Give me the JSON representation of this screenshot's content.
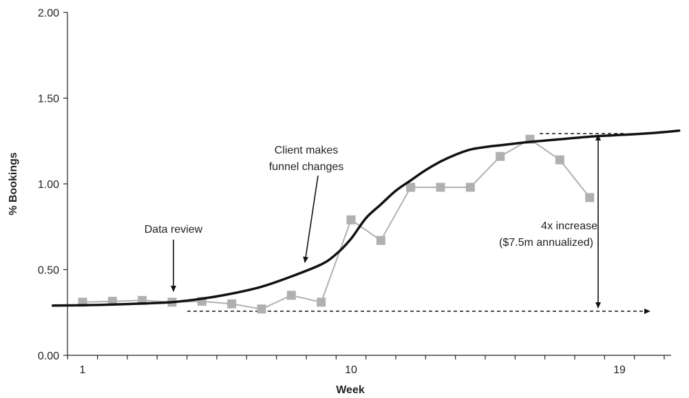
{
  "chart_data": {
    "type": "line",
    "title": "",
    "xlabel": "Week",
    "ylabel": "% Bookings",
    "xlim": [
      0,
      21
    ],
    "ylim": [
      0,
      2.0
    ],
    "x_tick_labels": [
      {
        "x": 1,
        "label": "1"
      },
      {
        "x": 10,
        "label": "10"
      },
      {
        "x": 19,
        "label": "19"
      }
    ],
    "y_tick_labels": [
      {
        "y": 0,
        "label": "0.00"
      },
      {
        "y": 0.5,
        "label": "0.50"
      },
      {
        "y": 1.0,
        "label": "1.00"
      },
      {
        "y": 1.5,
        "label": "1.50"
      },
      {
        "y": 2.0,
        "label": "2.00"
      }
    ],
    "grid": false,
    "series": [
      {
        "name": "",
        "style": "markers",
        "color": "#b0b0b0",
        "x": [
          1,
          2,
          3,
          4,
          5,
          6,
          7,
          8,
          9,
          10,
          11,
          12,
          13,
          14,
          15,
          16,
          17,
          18
        ],
        "values": [
          0.31,
          0.315,
          0.32,
          0.31,
          0.315,
          0.3,
          0.27,
          0.35,
          0.31,
          0.79,
          0.67,
          0.98,
          0.98,
          0.98,
          1.16,
          1.26,
          1.14,
          0.92
        ]
      },
      {
        "name": "",
        "style": "trend",
        "color": "#111111",
        "x": [
          0.0,
          1,
          2,
          3,
          4,
          5,
          6,
          7,
          8,
          9,
          9.5,
          10,
          10.5,
          11,
          11.5,
          12,
          12.5,
          13,
          13.5,
          14,
          14.5,
          15,
          15.5,
          16,
          17,
          18,
          19,
          20,
          21
        ],
        "values": [
          0.29,
          0.292,
          0.296,
          0.302,
          0.31,
          0.33,
          0.36,
          0.4,
          0.46,
          0.53,
          0.59,
          0.68,
          0.8,
          0.88,
          0.96,
          1.02,
          1.08,
          1.13,
          1.17,
          1.2,
          1.215,
          1.225,
          1.235,
          1.245,
          1.26,
          1.275,
          1.285,
          1.295,
          1.31
        ]
      }
    ],
    "annotations": [
      {
        "text_lines": [
          "Data review"
        ],
        "arrow_from": [
          4,
          0.5
        ],
        "arrow_to": [
          4,
          0.3
        ]
      },
      {
        "text_lines": [
          "Client makes",
          "funnel changes"
        ],
        "arrow_from": [
          9,
          0.85
        ],
        "arrow_to": [
          8.4,
          0.45
        ]
      },
      {
        "text_lines": [
          "4x increase",
          "($7.5m annualized)"
        ],
        "double_arrow": {
          "x": 17.7,
          "y_bottom": 0.27,
          "y_top": 1.27
        }
      },
      {
        "baseline_arrow": {
          "x_start": 4.5,
          "x_end": 20.5,
          "y": 0.26
        }
      },
      {
        "dashed_top": {
          "x_start": 16.3,
          "x_end": 19.5,
          "y": 1.29
        }
      }
    ]
  }
}
